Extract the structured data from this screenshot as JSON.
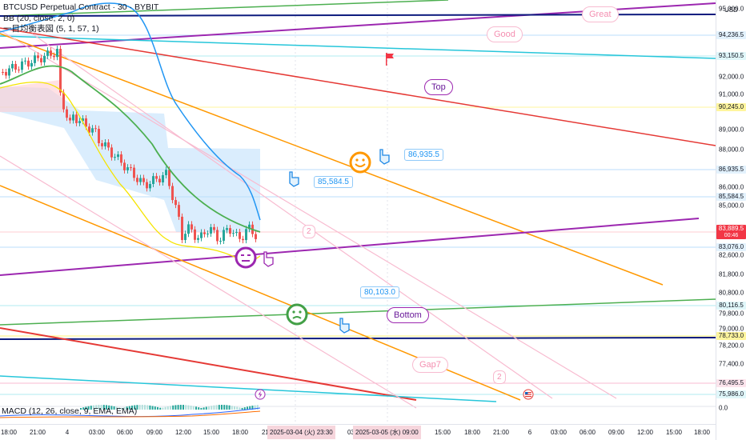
{
  "symbol_legend": "BTCUSD Perpetual Contract · 30 · BYBIT",
  "bb_legend": "BB (20, close, 2, 0)",
  "ichimoku_legend": "一目均衡表図 (5, 1, 57, 1)",
  "macd_legend": "MACD (12, 26, close, 9, EMA, EMA)",
  "price_axis": {
    "currency": "USD",
    "ticks": [
      "95,000.0",
      "92,000.0",
      "91,000.0",
      "89,000.0",
      "88,000.0",
      "86,000.0",
      "85,000.0",
      "82,600.0",
      "81,800.0",
      "80,800.0",
      "79,800.0",
      "79,000.0",
      "78,200.0",
      "77,400.0",
      "0.0"
    ],
    "badges": [
      {
        "label": "94,236.5",
        "bg": "#e3f2fd",
        "fg": "#131722"
      },
      {
        "label": "93,150.5",
        "bg": "#e0f7fa",
        "fg": "#131722"
      },
      {
        "label": "90,245.0",
        "bg": "#fff59d",
        "fg": "#131722"
      },
      {
        "label": "86,935.5",
        "bg": "#e3f2fd",
        "fg": "#131722"
      },
      {
        "label": "85,584.5",
        "bg": "#e3f2fd",
        "fg": "#131722"
      },
      {
        "label": "83,889.5",
        "sub": "00:46",
        "bg": "#f23645",
        "fg": "#ffffff"
      },
      {
        "label": "83,076.0",
        "bg": "#e3f2fd",
        "fg": "#131722"
      },
      {
        "label": "80,116.5",
        "bg": "#e0f7fa",
        "fg": "#131722"
      },
      {
        "label": "78,733.0",
        "bg": "#fff59d",
        "fg": "#131722"
      },
      {
        "label": "76,495.5",
        "bg": "#fce4ec",
        "fg": "#131722"
      },
      {
        "label": "75,986.0",
        "bg": "#e0f7fa",
        "fg": "#131722"
      }
    ]
  },
  "time_axis": {
    "ticks": [
      "18:00",
      "21:00",
      "4",
      "03:00",
      "06:00",
      "09:00",
      "12:00",
      "15:00",
      "18:00",
      "21:00",
      "03:00",
      "15:00",
      "18:00",
      "21:00",
      "6",
      "03:00",
      "06:00",
      "09:00",
      "12:00",
      "15:00",
      "18:00"
    ],
    "highlights": [
      "2025-03-04 (火)  23:30",
      "2025-03-05 (水)  09:00"
    ]
  },
  "annotations": {
    "callout_1": "85,584.5",
    "callout_2": "86,935.5",
    "callout_3": "80,103.0",
    "bubble_top": "Top",
    "bubble_bottom": "Bottom",
    "bubble_good": "Good",
    "bubble_great": "Great",
    "bubble_gap": "Gap7",
    "num_1": "2",
    "num_2": "2"
  },
  "colors": {
    "bull": "#26a69a",
    "bear": "#ef5350",
    "bb_upper": "#2196f3",
    "bb_fill": "#bbdefb",
    "ichimoku_green": "#4caf50",
    "ichimoku_yellow": "#f5e400",
    "trend_orange": "#ff9800",
    "trend_purple": "#9c27b0",
    "trend_red": "#e53935",
    "trend_navy": "#0d1b7e",
    "trend_cyan": "#26c6da",
    "trend_pink": "#f8bbd0"
  },
  "icons": [
    "happy-face-icon",
    "neutral-face-icon",
    "green-face-icon",
    "pointing-hand-icon",
    "flag-icon",
    "lightning-icon",
    "us-flag-icon"
  ]
}
